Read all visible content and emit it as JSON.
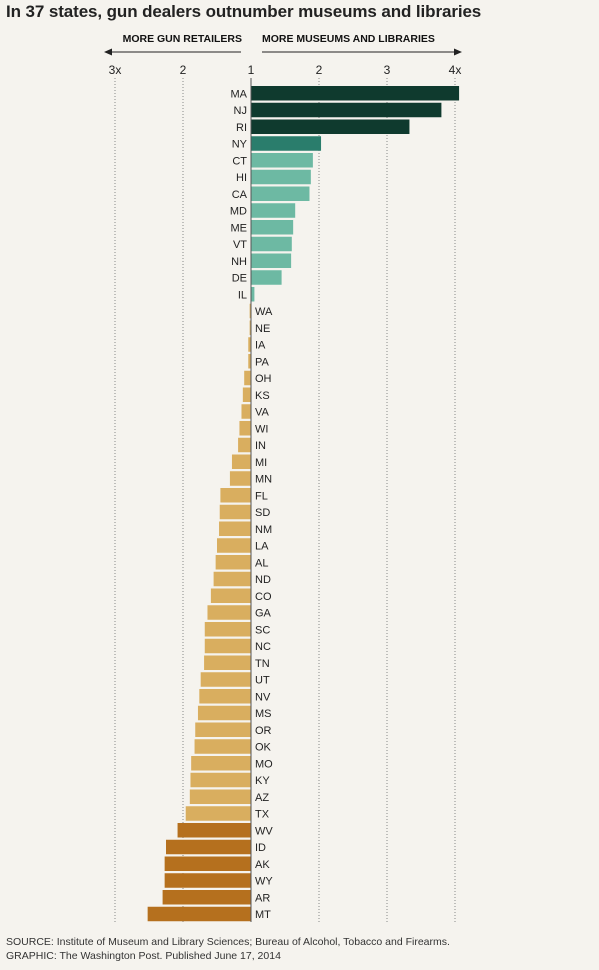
{
  "chart_data": {
    "type": "bar",
    "title": "In 37 states, gun dealers outnumber museums and libraries",
    "direction_left_label": "MORE GUN RETAILERS",
    "direction_right_label": "MORE MUSEUMS AND LIBRARIES",
    "x_ticks": [
      {
        "value": -2,
        "label": "3x"
      },
      {
        "value": -1,
        "label": "2"
      },
      {
        "value": 0,
        "label": "1"
      },
      {
        "value": 1,
        "label": "2"
      },
      {
        "value": 2,
        "label": "3"
      },
      {
        "value": 3,
        "label": "4x"
      }
    ],
    "xlim": [
      -2.1,
      3.2
    ],
    "value_note": "ratio expressed relative to 1 (parity); positive = more museums and libraries per gun retailer, negative = more gun retailers",
    "categories": [
      "MA",
      "NJ",
      "RI",
      "NY",
      "CT",
      "HI",
      "CA",
      "MD",
      "ME",
      "VT",
      "NH",
      "DE",
      "IL",
      "WA",
      "NE",
      "IA",
      "PA",
      "OH",
      "KS",
      "VA",
      "WI",
      "IN",
      "MI",
      "MN",
      "FL",
      "SD",
      "NM",
      "LA",
      "AL",
      "ND",
      "CO",
      "GA",
      "SC",
      "NC",
      "TN",
      "UT",
      "NV",
      "MS",
      "OR",
      "OK",
      "MO",
      "KY",
      "AZ",
      "TX",
      "WV",
      "ID",
      "AK",
      "WY",
      "AR",
      "MT"
    ],
    "values": [
      3.06,
      2.8,
      2.33,
      1.03,
      0.91,
      0.88,
      0.86,
      0.65,
      0.62,
      0.6,
      0.59,
      0.45,
      0.05,
      -0.02,
      -0.02,
      -0.04,
      -0.04,
      -0.1,
      -0.12,
      -0.14,
      -0.17,
      -0.19,
      -0.28,
      -0.31,
      -0.45,
      -0.46,
      -0.47,
      -0.5,
      -0.52,
      -0.55,
      -0.59,
      -0.64,
      -0.68,
      -0.68,
      -0.69,
      -0.74,
      -0.76,
      -0.78,
      -0.82,
      -0.83,
      -0.88,
      -0.89,
      -0.9,
      -0.96,
      -1.08,
      -1.25,
      -1.27,
      -1.27,
      -1.3,
      -1.52
    ],
    "color_groups": [
      {
        "color": "#0f3a2e",
        "members": [
          "MA",
          "NJ",
          "RI"
        ]
      },
      {
        "color": "#2a7d6c",
        "members": [
          "NY"
        ]
      },
      {
        "color": "#6db9a3",
        "members": [
          "CT",
          "HI",
          "CA",
          "MD",
          "ME",
          "VT",
          "NH",
          "DE",
          "IL"
        ]
      },
      {
        "color": "#d9ae5f",
        "members": [
          "WA",
          "NE",
          "IA",
          "PA",
          "OH",
          "KS",
          "VA",
          "WI",
          "IN",
          "MI",
          "MN",
          "FL",
          "SD",
          "NM",
          "LA",
          "AL",
          "ND",
          "CO",
          "GA",
          "SC",
          "NC",
          "TN",
          "UT",
          "NV",
          "MS",
          "OR",
          "OK",
          "MO",
          "KY",
          "AZ",
          "TX"
        ]
      },
      {
        "color": "#b5701e",
        "members": [
          "WV",
          "ID",
          "AK",
          "WY",
          "AR",
          "MT"
        ]
      }
    ],
    "grid": "vertical dotted lines at tick values",
    "legend": "none"
  },
  "footer": {
    "source": "SOURCE: Institute of Museum and Library Sciences; Bureau of Alcohol, Tobacco and Firearms.",
    "credit": "GRAPHIC: The Washington Post. Published June 17, 2014"
  }
}
